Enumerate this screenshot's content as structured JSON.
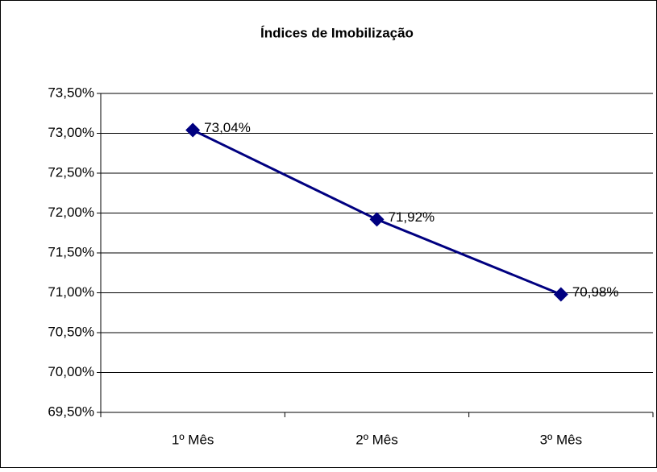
{
  "chart_data": {
    "type": "line",
    "title": "Índices de Imobilização",
    "categories": [
      "1º Mês",
      "2º Mês",
      "3º Mês"
    ],
    "series": [
      {
        "name": "Índices de Imobilização",
        "color": "#000080",
        "values": [
          73.04,
          71.92,
          70.98
        ],
        "value_labels": [
          "73,04%",
          "71,92%",
          "70,98%"
        ]
      }
    ],
    "ylim": [
      69.5,
      73.5
    ],
    "yticks": [
      {
        "value": 69.5,
        "label": "69,50%"
      },
      {
        "value": 70,
        "label": "70,00%"
      },
      {
        "value": 70.5,
        "label": "70,50%"
      },
      {
        "value": 71,
        "label": "71,00%"
      },
      {
        "value": 71.5,
        "label": "71,50%"
      },
      {
        "value": 72,
        "label": "72,00%"
      },
      {
        "value": 72.5,
        "label": "72,50%"
      },
      {
        "value": 73,
        "label": "73,00%"
      },
      {
        "value": 73.5,
        "label": "73,50%"
      }
    ],
    "grid": true
  }
}
